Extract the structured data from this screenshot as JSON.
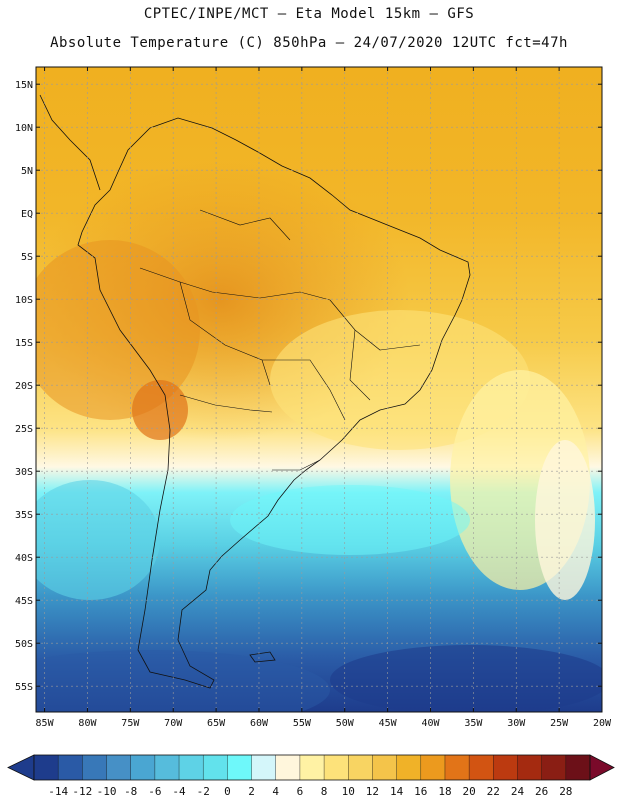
{
  "header": {
    "line1": "CPTEC/INPE/MCT –  Eta Model 15km – GFS",
    "line2": "Absolute Temperature (C) 850hPa – 24/07/2020 12UTC fct=47h"
  },
  "map": {
    "lat_labels": [
      "15N",
      "10N",
      "5N",
      "EQ",
      "5S",
      "10S",
      "15S",
      "20S",
      "25S",
      "30S",
      "35S",
      "40S",
      "45S",
      "50S",
      "55S"
    ],
    "lat_values": [
      15,
      10,
      5,
      0,
      -5,
      -10,
      -15,
      -20,
      -25,
      -30,
      -35,
      -40,
      -45,
      -50,
      -55
    ],
    "lon_labels": [
      "85W",
      "80W",
      "75W",
      "70W",
      "65W",
      "60W",
      "55W",
      "50W",
      "45W",
      "40W",
      "35W",
      "30W",
      "25W",
      "20W"
    ],
    "lon_values": [
      -85,
      -80,
      -75,
      -70,
      -65,
      -60,
      -55,
      -50,
      -45,
      -40,
      -35,
      -30,
      -25,
      -20
    ],
    "extent": {
      "lon_min": -86,
      "lon_max": -20,
      "lat_min": -58,
      "lat_max": 17
    }
  },
  "colorbar": {
    "labels": [
      "-14",
      "-12",
      "-10",
      "-8",
      "-6",
      "-4",
      "-2",
      "0",
      "2",
      "4",
      "6",
      "8",
      "10",
      "12",
      "14",
      "16",
      "18",
      "20",
      "22",
      "24",
      "26",
      "28"
    ],
    "colors": [
      "#1e3c8c",
      "#2a5aa6",
      "#3878b8",
      "#4690c6",
      "#4aa6d2",
      "#56bcdc",
      "#5ed2e6",
      "#62e2ec",
      "#6ef8fa",
      "#d4f6fa",
      "#fff6dc",
      "#fff2a4",
      "#fde27a",
      "#f8d462",
      "#f4c44a",
      "#f0b228",
      "#ec9a1e",
      "#e27418",
      "#d25412",
      "#bc3a10",
      "#a42a10",
      "#8a1e14",
      "#6c1018"
    ],
    "under_color": "#1e3c8c",
    "over_color": "#7a0a2a"
  }
}
